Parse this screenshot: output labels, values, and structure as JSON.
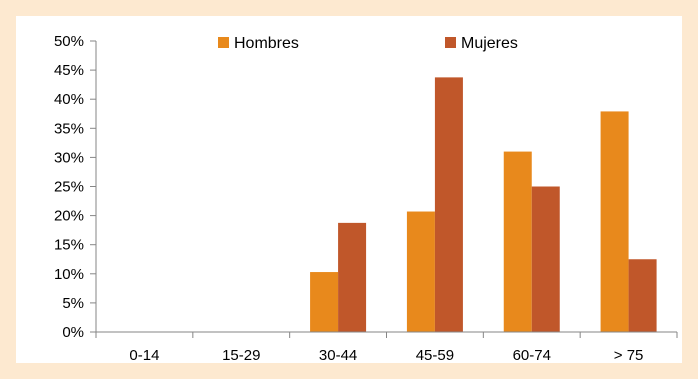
{
  "chart_data": {
    "type": "bar",
    "categories": [
      "0-14",
      "15-29",
      "30-44",
      "45-59",
      "60-74",
      "> 75"
    ],
    "series": [
      {
        "name": "Hombres",
        "values": [
          0,
          0,
          10.3,
          20.7,
          31.0,
          37.9
        ],
        "color": "#e8891c"
      },
      {
        "name": "Mujeres",
        "values": [
          0,
          0,
          18.75,
          43.75,
          25.0,
          12.5
        ],
        "color": "#c0572a"
      }
    ],
    "y_tick_labels": [
      "0%",
      "5%",
      "10%",
      "15%",
      "20%",
      "25%",
      "30%",
      "35%",
      "40%",
      "45%",
      "50%"
    ],
    "ylim": [
      0,
      50
    ],
    "y_tick_step": 5,
    "y_unit": "%",
    "grid": false,
    "legend_position": "top-center",
    "title": "",
    "xlabel": "",
    "ylabel": ""
  },
  "colors": {
    "page_background": "#fde9d0",
    "plot_background": "#ffffff",
    "axis": "#868686"
  }
}
